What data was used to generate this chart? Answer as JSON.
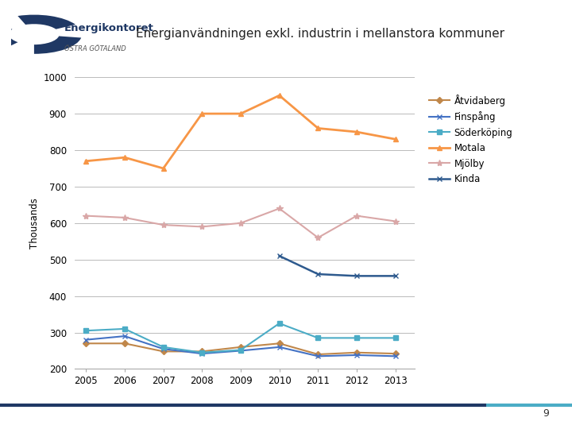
{
  "title": "Energianvändningen exkl. industrin i mellanstora kommuner",
  "ylabel": "Thousands",
  "years": [
    2005,
    2006,
    2007,
    2008,
    2009,
    2010,
    2011,
    2012,
    2013
  ],
  "series": [
    {
      "name": "Åtvidaberg",
      "values": [
        270,
        270,
        248,
        248,
        260,
        270,
        240,
        245,
        242
      ],
      "color": "#C0874A",
      "marker": "D",
      "markersize": 4,
      "linewidth": 1.5
    },
    {
      "name": "Finspång",
      "values": [
        280,
        290,
        255,
        242,
        250,
        260,
        235,
        238,
        235
      ],
      "color": "#4472C4",
      "marker": "x",
      "markersize": 5,
      "linewidth": 1.5
    },
    {
      "name": "Söderköping",
      "values": [
        305,
        310,
        260,
        245,
        252,
        325,
        285,
        285,
        285
      ],
      "color": "#4BACC6",
      "marker": "s",
      "markersize": 5,
      "linewidth": 1.5
    },
    {
      "name": "Motala",
      "values": [
        770,
        780,
        750,
        900,
        900,
        950,
        860,
        850,
        830
      ],
      "color": "#F79646",
      "marker": "^",
      "markersize": 5,
      "linewidth": 2.0
    },
    {
      "name": "Mjölby",
      "values": [
        620,
        615,
        595,
        590,
        600,
        640,
        560,
        620,
        605
      ],
      "color": "#D9A7A7",
      "marker": "*",
      "markersize": 6,
      "linewidth": 1.5
    },
    {
      "name": "Kinda",
      "values": [
        null,
        null,
        null,
        null,
        null,
        510,
        460,
        455,
        455
      ],
      "color": "#2E5A8E",
      "marker": "x",
      "markersize": 5,
      "linewidth": 1.8
    }
  ],
  "ylim": [
    200,
    1000
  ],
  "yticks": [
    200,
    300,
    400,
    500,
    600,
    700,
    800,
    900,
    1000
  ],
  "background_color": "#ffffff",
  "grid_color": "#b0b0b0",
  "title_fontsize": 11,
  "tick_fontsize": 8.5,
  "legend_fontsize": 8.5,
  "logo_text_line1": "Energikontoret",
  "logo_text_line2": "ÖSTRA GÖTALAND",
  "page_number": "9",
  "bottom_line_color1": "#1F3864",
  "bottom_line_color2": "#4BACC6"
}
